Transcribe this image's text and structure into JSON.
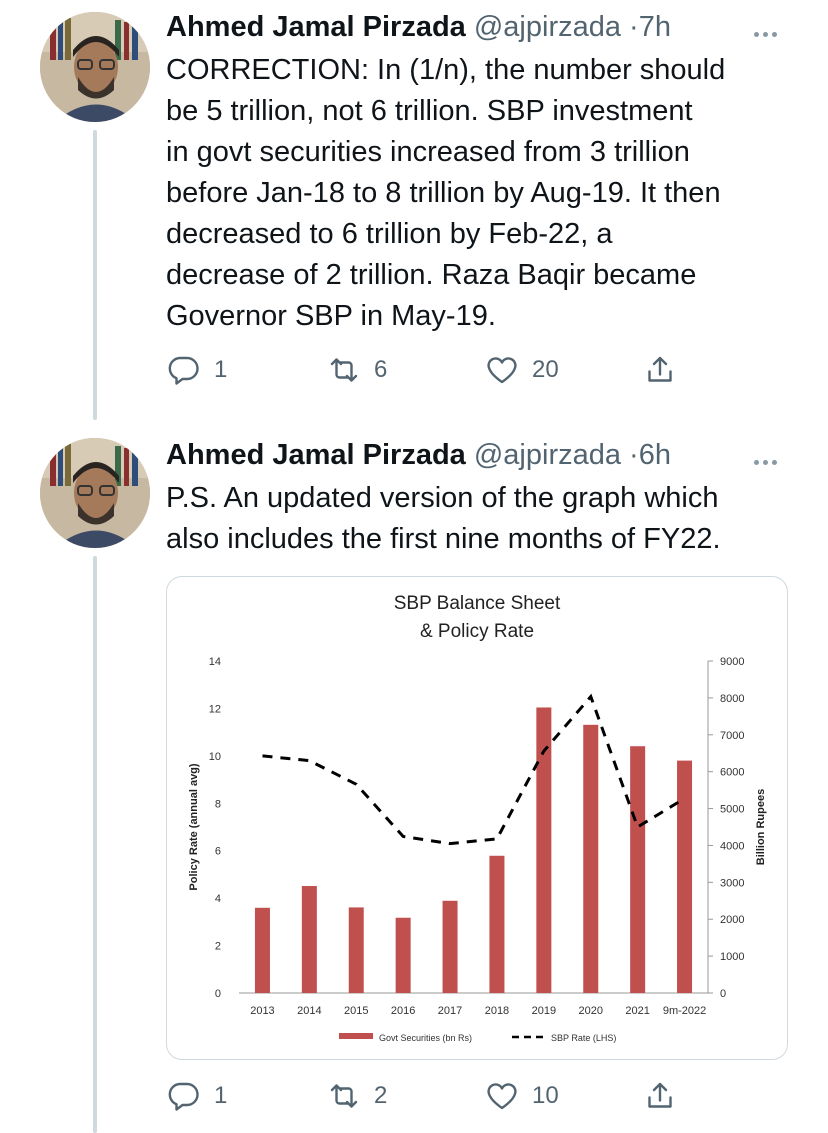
{
  "tweets": [
    {
      "author": {
        "display_name": "Ahmed Jamal Pirzada",
        "handle": "@ajpirzada"
      },
      "time": "7h",
      "separator": "·",
      "text": "CORRECTION: In (1/n), the number should\nbe 5 trillion, not 6 trillion. SBP investment\nin govt securities increased from 3 trillion\nbefore Jan-18 to 8 trillion by Aug-19. It then\ndecreased to 6 trillion by Feb-22, a\ndecrease of 2 trillion. Raza Baqir became\nGovernor SBP in May-19.",
      "stats": {
        "replies": "1",
        "retweets": "6",
        "likes": "20"
      },
      "icons": {
        "reply": "reply-icon",
        "retweet": "retweet-icon",
        "like": "heart-icon",
        "share": "share-icon",
        "more": "more-icon"
      }
    },
    {
      "author": {
        "display_name": "Ahmed Jamal Pirzada",
        "handle": "@ajpirzada"
      },
      "time": "6h",
      "separator": "·",
      "text": "P.S. An updated version of the graph which\nalso includes the first nine months of FY22.",
      "stats": {
        "replies": "1",
        "retweets": "2",
        "likes": "10"
      },
      "icons": {
        "reply": "reply-icon",
        "retweet": "retweet-icon",
        "like": "heart-icon",
        "share": "share-icon",
        "more": "more-icon"
      }
    }
  ],
  "colors": {
    "bar": "#c0504d",
    "line": "#000000",
    "muted": "#536471",
    "thread": "#cfd9de"
  },
  "chart_data": {
    "type": "bar",
    "title": "SBP Balance Sheet",
    "subtitle": "& Policy Rate",
    "categories": [
      "2013",
      "2014",
      "2015",
      "2016",
      "2017",
      "2018",
      "2019",
      "2020",
      "2021",
      "9m-2022"
    ],
    "series": [
      {
        "name": "Govt Securities (bn Rs)",
        "type": "bar",
        "axis": "right",
        "values": [
          2310,
          2900,
          2320,
          2040,
          2500,
          3720,
          7740,
          7270,
          6690,
          6300
        ]
      },
      {
        "name": "SBP Rate (LHS)",
        "type": "line",
        "style": "dashed",
        "axis": "left",
        "values": [
          10.0,
          9.8,
          8.8,
          6.6,
          6.3,
          6.5,
          10.2,
          12.5,
          7.0,
          8.2
        ]
      }
    ],
    "ylabel": "Policy Rate (annual avg)",
    "ylim": [
      0,
      14
    ],
    "yticks": [
      "0",
      "2",
      "4",
      "6",
      "8",
      "10",
      "12",
      "14"
    ],
    "y2label": "Billion Rupees",
    "y2lim": [
      0,
      9000
    ],
    "y2ticks": [
      "0",
      "1000",
      "2000",
      "3000",
      "4000",
      "5000",
      "6000",
      "7000",
      "8000",
      "9000"
    ],
    "legend_position": "bottom",
    "grid": false
  }
}
